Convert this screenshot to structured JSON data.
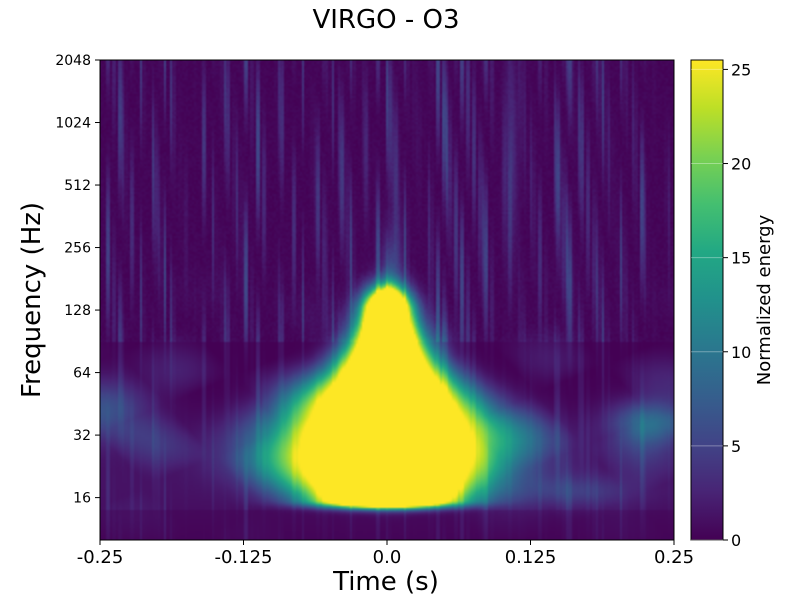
{
  "chart_data": {
    "type": "heatmap",
    "title": "VIRGO - O3",
    "xlabel": "Time (s)",
    "ylabel": "Frequency (Hz)",
    "colorbar_label": "Normalized energy",
    "x_range": [
      -0.25,
      0.25
    ],
    "y_range": [
      10,
      2048
    ],
    "y_scale": "log2",
    "x_ticks": [
      "-0.25",
      "-0.125",
      "0.0",
      "0.125",
      "0.25"
    ],
    "x_tick_values": [
      -0.25,
      -0.125,
      0.0,
      0.125,
      0.25
    ],
    "y_ticks": [
      "16",
      "32",
      "64",
      "128",
      "256",
      "512",
      "1024",
      "2048"
    ],
    "y_tick_values": [
      16,
      32,
      64,
      128,
      256,
      512,
      1024,
      2048
    ],
    "colorbar_ticks": [
      "0",
      "5",
      "10",
      "15",
      "20",
      "25"
    ],
    "colorbar_tick_values": [
      0,
      5,
      10,
      15,
      20,
      25
    ],
    "colorbar_range": [
      0,
      25.5
    ],
    "colormap": "viridis",
    "grid": false,
    "features": [
      {
        "time": 0.0,
        "freq_low": 15,
        "freq_high": 128,
        "energy": 25.5
      },
      {
        "time": -0.25,
        "freq_low": 30,
        "freq_high": 60,
        "energy": 7
      },
      {
        "time": 0.23,
        "freq_low": 30,
        "freq_high": 45,
        "energy": 9
      },
      {
        "time": 0.16,
        "freq_low": 14,
        "freq_high": 20,
        "energy": 4
      }
    ]
  }
}
